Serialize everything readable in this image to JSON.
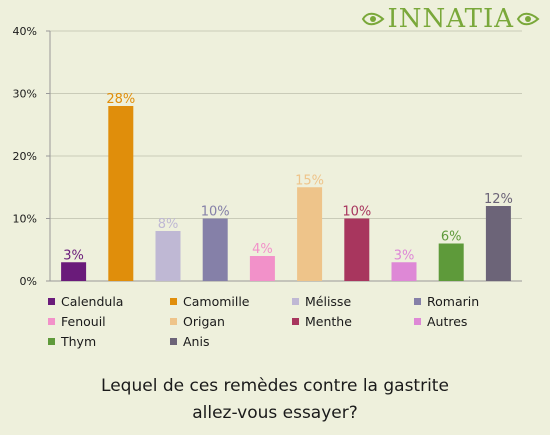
{
  "brand": {
    "name": "INNATIA"
  },
  "colors": {
    "background": "#eef0dc",
    "grid": "#c9cbb8",
    "axis": "#999999",
    "brand": "#7aa83a"
  },
  "question": {
    "line1": "Lequel de ces remèdes contre la gastrite",
    "line2": "allez-vous essayer?"
  },
  "chart_data": {
    "type": "bar",
    "title": "",
    "xlabel": "",
    "ylabel": "",
    "ylim": [
      0,
      40
    ],
    "yticks": [
      "0%",
      "10%",
      "20%",
      "30%",
      "40%"
    ],
    "grid": true,
    "legend_position": "bottom",
    "categories": [
      "Calendula",
      "Camomille",
      "Mélisse",
      "Romarin",
      "Fenouil",
      "Origan",
      "Menthe",
      "Autres",
      "Thym",
      "Anis"
    ],
    "values": [
      3,
      28,
      8,
      10,
      4,
      15,
      10,
      3,
      6,
      12
    ],
    "value_labels": [
      "3%",
      "28%",
      "8%",
      "10%",
      "4%",
      "15%",
      "10%",
      "3%",
      "6%",
      "12%"
    ],
    "colors": [
      "#6a1b7a",
      "#e08e0b",
      "#bfb8d4",
      "#8580a8",
      "#f291c9",
      "#eec48a",
      "#a8365e",
      "#de88d6",
      "#5e9a3a",
      "#6c6478"
    ]
  }
}
